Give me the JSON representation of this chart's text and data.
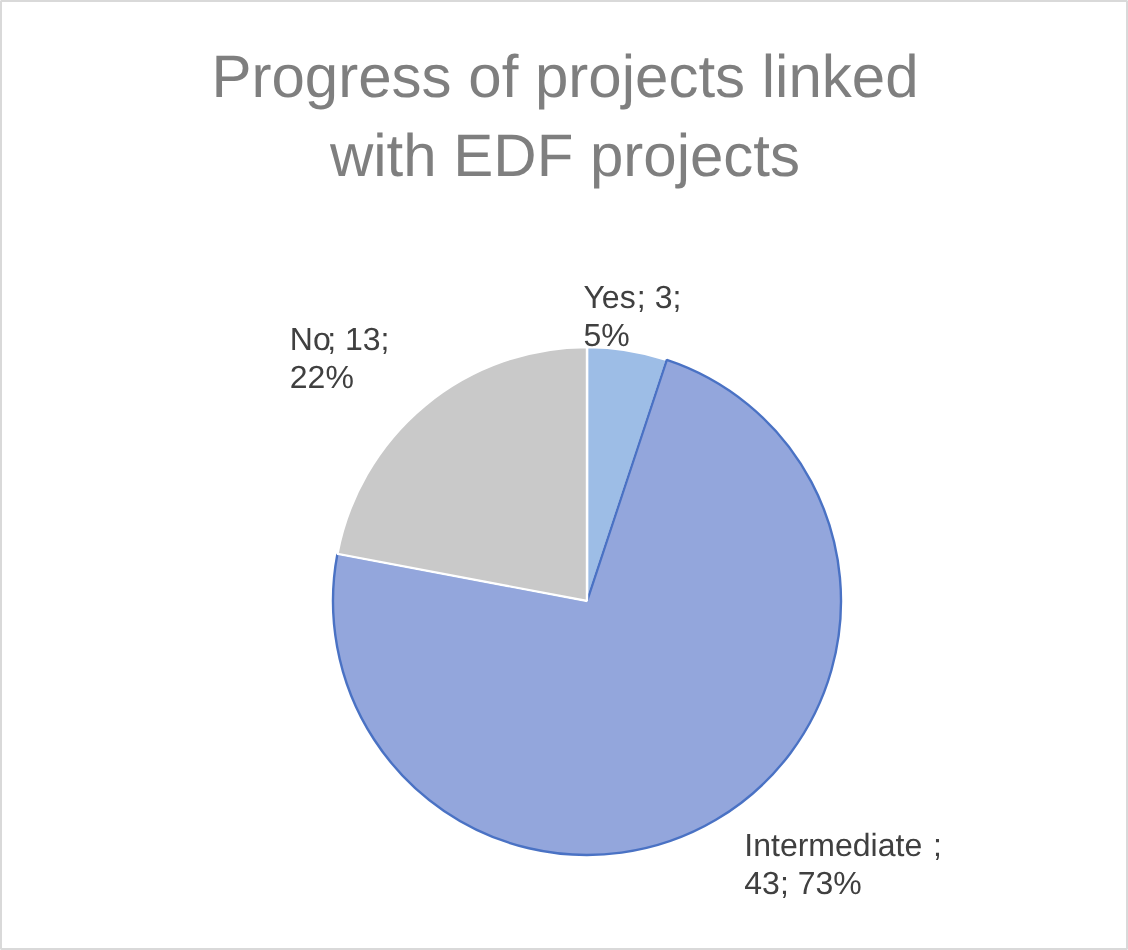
{
  "chart_data": {
    "type": "pie",
    "title": "Progress of projects linked with EDF projects",
    "categories": [
      "Yes",
      "Intermediate",
      "No"
    ],
    "values": [
      3,
      43,
      13
    ],
    "colors": [
      "#9dbde6",
      "#93a6dc",
      "#c9c9c9"
    ],
    "value_labels": [
      "; 3; 5%",
      "; 43; 73%",
      "; 13; 22%"
    ]
  }
}
